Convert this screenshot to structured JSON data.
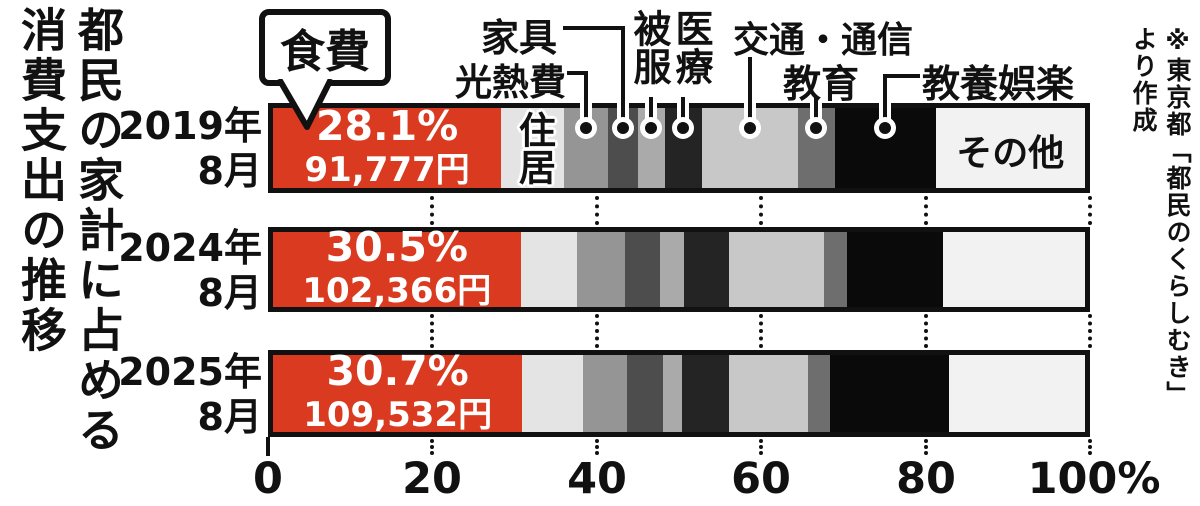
{
  "title": {
    "line1": "都民の家計に占める",
    "line2": "消費支出の推移"
  },
  "source_note": {
    "line1": "※東京都「都民のくらしむき」",
    "line2": "より作成"
  },
  "colors": {
    "accent_red": "#d93a20",
    "bar_border": "#111111",
    "background": "#ffffff"
  },
  "chart_data": {
    "type": "bar",
    "subtype": "horizontal-stacked",
    "unit": "%",
    "title": "都民の家計に占める消費支出の推移",
    "xlabel": "",
    "ylabel": "",
    "xlim": [
      0,
      100
    ],
    "grid": "dotted-vertical-at-20-40-60-80-100",
    "x_axis_ticks": [
      "0",
      "20",
      "40",
      "60",
      "80",
      "100%"
    ],
    "categories": [
      "食費",
      "住居",
      "光熱費",
      "家具",
      "被服",
      "医療",
      "交通・通信",
      "教育",
      "教養娯楽",
      "その他"
    ],
    "category_colors": [
      "#d93a20",
      "#e4e4e4",
      "#959595",
      "#4d4d4d",
      "#aaaaaa",
      "#242424",
      "#c8c8c8",
      "#6e6e6e",
      "#0a0a0a",
      "#f2f2f2"
    ],
    "bars": [
      {
        "year_label": "2019年",
        "month_label": "8月",
        "food_share_pct": "28.1%",
        "food_amount": "91,777円",
        "values": [
          28.1,
          7.7,
          5.5,
          3.6,
          3.4,
          4.5,
          11.8,
          4.6,
          12.4,
          18.4
        ]
      },
      {
        "year_label": "2024年",
        "month_label": "8月",
        "food_share_pct": "30.5%",
        "food_amount": "102,366円",
        "values": [
          30.5,
          6.9,
          5.9,
          4.4,
          2.9,
          5.6,
          11.6,
          2.9,
          11.8,
          17.5
        ]
      },
      {
        "year_label": "2025年",
        "month_label": "8月",
        "food_share_pct": "30.7%",
        "food_amount": "109,532円",
        "values": [
          30.7,
          7.5,
          5.4,
          4.4,
          2.4,
          5.8,
          9.7,
          2.7,
          14.6,
          16.8
        ]
      }
    ],
    "callout": {
      "label": "食費"
    },
    "in_bar_labels": {
      "housing": "住居",
      "other": "その他"
    },
    "annotations": [
      "光熱費",
      "家具",
      "被服",
      "医療",
      "交通・通信",
      "教育",
      "教養娯楽"
    ]
  }
}
